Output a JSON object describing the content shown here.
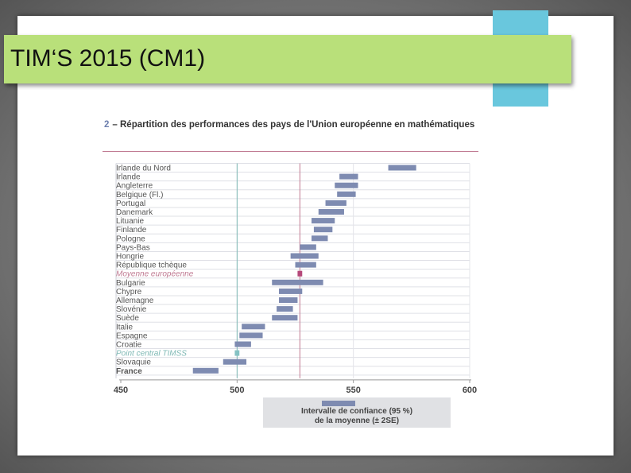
{
  "slide": {
    "title": "TIM‘S 2015 (CM1)"
  },
  "figure": {
    "number": "2",
    "title": "– Répartition des performances des pays de l'Union européenne en mathématiques"
  },
  "legend": {
    "label": "Intervalle de confiance (95 %)\nde la moyenne (± 2SE)"
  },
  "colors": {
    "bar": "#7e8bb1",
    "eu_mean_bar": "#b5487a",
    "timss_bar": "#85c2c4",
    "eu_line": "#c07a92",
    "timss_line": "#7fb9b5",
    "accent_green": "#b9e07a",
    "accent_cyan": "#69c7dd"
  },
  "chart_data": {
    "type": "bar",
    "orientation": "horizontal-range",
    "xlim": [
      450,
      600
    ],
    "xticks": [
      450,
      500,
      550,
      600
    ],
    "grid": true,
    "reference_lines": [
      {
        "label": "Point central TIMSS",
        "value": 500
      },
      {
        "label": "Moyenne européenne",
        "value": 527
      }
    ],
    "rows": [
      {
        "label": "Irlande du Nord",
        "low": 565,
        "high": 577,
        "kind": "country"
      },
      {
        "label": "Irlande",
        "low": 544,
        "high": 552,
        "kind": "country"
      },
      {
        "label": "Angleterre",
        "low": 542,
        "high": 552,
        "kind": "country"
      },
      {
        "label": "Belgique (Fl.)",
        "low": 543,
        "high": 551,
        "kind": "country"
      },
      {
        "label": "Portugal",
        "low": 538,
        "high": 547,
        "kind": "country"
      },
      {
        "label": "Danemark",
        "low": 535,
        "high": 546,
        "kind": "country"
      },
      {
        "label": "Lituanie",
        "low": 532,
        "high": 542,
        "kind": "country"
      },
      {
        "label": "Finlande",
        "low": 533,
        "high": 541,
        "kind": "country"
      },
      {
        "label": "Pologne",
        "low": 532,
        "high": 539,
        "kind": "country"
      },
      {
        "label": "Pays-Bas",
        "low": 527,
        "high": 534,
        "kind": "country"
      },
      {
        "label": "Hongrie",
        "low": 523,
        "high": 535,
        "kind": "country"
      },
      {
        "label": "République tchèque",
        "low": 525,
        "high": 534,
        "kind": "country"
      },
      {
        "label": "Moyenne européenne",
        "low": 526,
        "high": 528,
        "kind": "eu_mean"
      },
      {
        "label": "Bulgarie",
        "low": 515,
        "high": 537,
        "kind": "country"
      },
      {
        "label": "Chypre",
        "low": 518,
        "high": 528,
        "kind": "country"
      },
      {
        "label": "Allemagne",
        "low": 518,
        "high": 526,
        "kind": "country"
      },
      {
        "label": "Slovénie",
        "low": 517,
        "high": 524,
        "kind": "country"
      },
      {
        "label": "Suède",
        "low": 515,
        "high": 526,
        "kind": "country"
      },
      {
        "label": "Italie",
        "low": 502,
        "high": 512,
        "kind": "country"
      },
      {
        "label": "Espagne",
        "low": 501,
        "high": 511,
        "kind": "country"
      },
      {
        "label": "Croatie",
        "low": 499,
        "high": 506,
        "kind": "country"
      },
      {
        "label": "Point central TIMSS",
        "low": 499,
        "high": 501,
        "kind": "timss"
      },
      {
        "label": "Slovaquie",
        "low": 494,
        "high": 504,
        "kind": "country"
      },
      {
        "label": "France",
        "low": 481,
        "high": 492,
        "kind": "france"
      }
    ]
  }
}
